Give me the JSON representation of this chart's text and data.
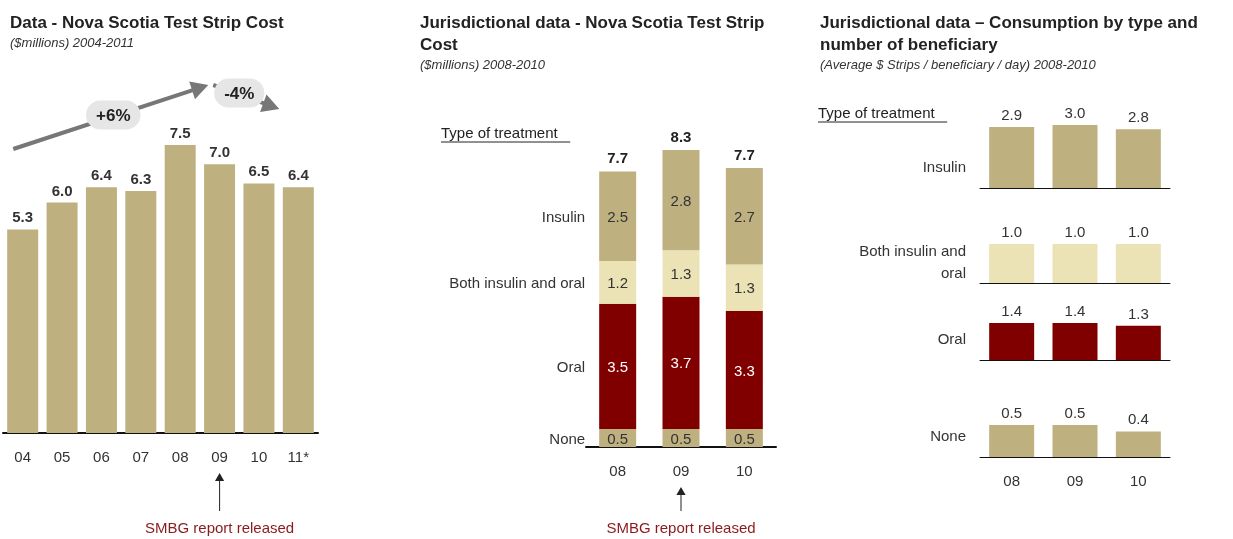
{
  "chart_data": [
    {
      "type": "bar",
      "title": "Data - Nova Scotia Test Strip Cost",
      "subtitle": "($millions) 2004-2011",
      "categories": [
        "04",
        "05",
        "06",
        "07",
        "08",
        "09",
        "10",
        "11*"
      ],
      "values": [
        5.3,
        6.0,
        6.4,
        6.3,
        7.5,
        7.0,
        6.5,
        6.4
      ],
      "value_labels": [
        "5.3",
        "6.0",
        "6.4",
        "6.3",
        "7.5",
        "7.0",
        "6.5",
        "6.4"
      ],
      "color": "#bfb080",
      "tick_labels": "x",
      "annotations": [
        "+6%",
        "-4%",
        "SMBG report released"
      ]
    },
    {
      "type": "bar",
      "title": "Jurisdictional data - Nova Scotia Test Strip Cost",
      "subtitle": "($millions) 2008-2010",
      "legend_title": "Type of treatment",
      "categories": [
        "08",
        "09",
        "10"
      ],
      "stacked": true,
      "data_labels": true,
      "tick_labels": "x",
      "totals": [
        "7.7",
        "8.3",
        "7.7"
      ],
      "series": [
        {
          "name": "None",
          "color": "#bfb080",
          "values": [
            0.5,
            0.5,
            0.5
          ]
        },
        {
          "name": "Oral",
          "color": "#800000",
          "values": [
            3.5,
            3.7,
            3.3
          ]
        },
        {
          "name": "Both insulin and oral",
          "color": "#ebe3b5",
          "values": [
            1.2,
            1.3,
            1.3
          ]
        },
        {
          "name": "Insulin",
          "color": "#bfb080",
          "values": [
            2.5,
            2.8,
            2.7
          ]
        }
      ],
      "annotations": [
        "SMBG report released"
      ]
    },
    {
      "type": "bar",
      "title": "Jurisdictional data – Consumption by type and number of beneficiary",
      "subtitle": "(Average $ Strips / beneficiary / day) 2008-2010",
      "legend_title": "Type of treatment",
      "ylabel": "Insulin",
      "categories": [
        "08",
        "09",
        "10"
      ],
      "values": [
        2.9,
        3.0,
        2.8
      ],
      "value_labels": [
        "2.9",
        "3.0",
        "2.8"
      ],
      "color": "#bfb080",
      "tick_labels": false
    },
    {
      "type": "bar",
      "ylabel": "Both insulin and oral",
      "categories": [
        "08",
        "09",
        "10"
      ],
      "values": [
        1.0,
        1.0,
        1.0
      ],
      "value_labels": [
        "1.0",
        "1.0",
        "1.0"
      ],
      "color": "#ebe3b5",
      "tick_labels": false
    },
    {
      "type": "bar",
      "ylabel": "Oral",
      "categories": [
        "08",
        "09",
        "10"
      ],
      "values": [
        1.4,
        1.4,
        1.3
      ],
      "color": "#800000",
      "data_labels": true,
      "tick_labels": false
    },
    {
      "type": "bar",
      "ylabel": "None",
      "categories": [
        "08",
        "09",
        "10"
      ],
      "values": [
        0.5,
        0.5,
        0.4
      ],
      "color": "#bfb080",
      "data_labels": true,
      "tick_labels": "x"
    }
  ]
}
